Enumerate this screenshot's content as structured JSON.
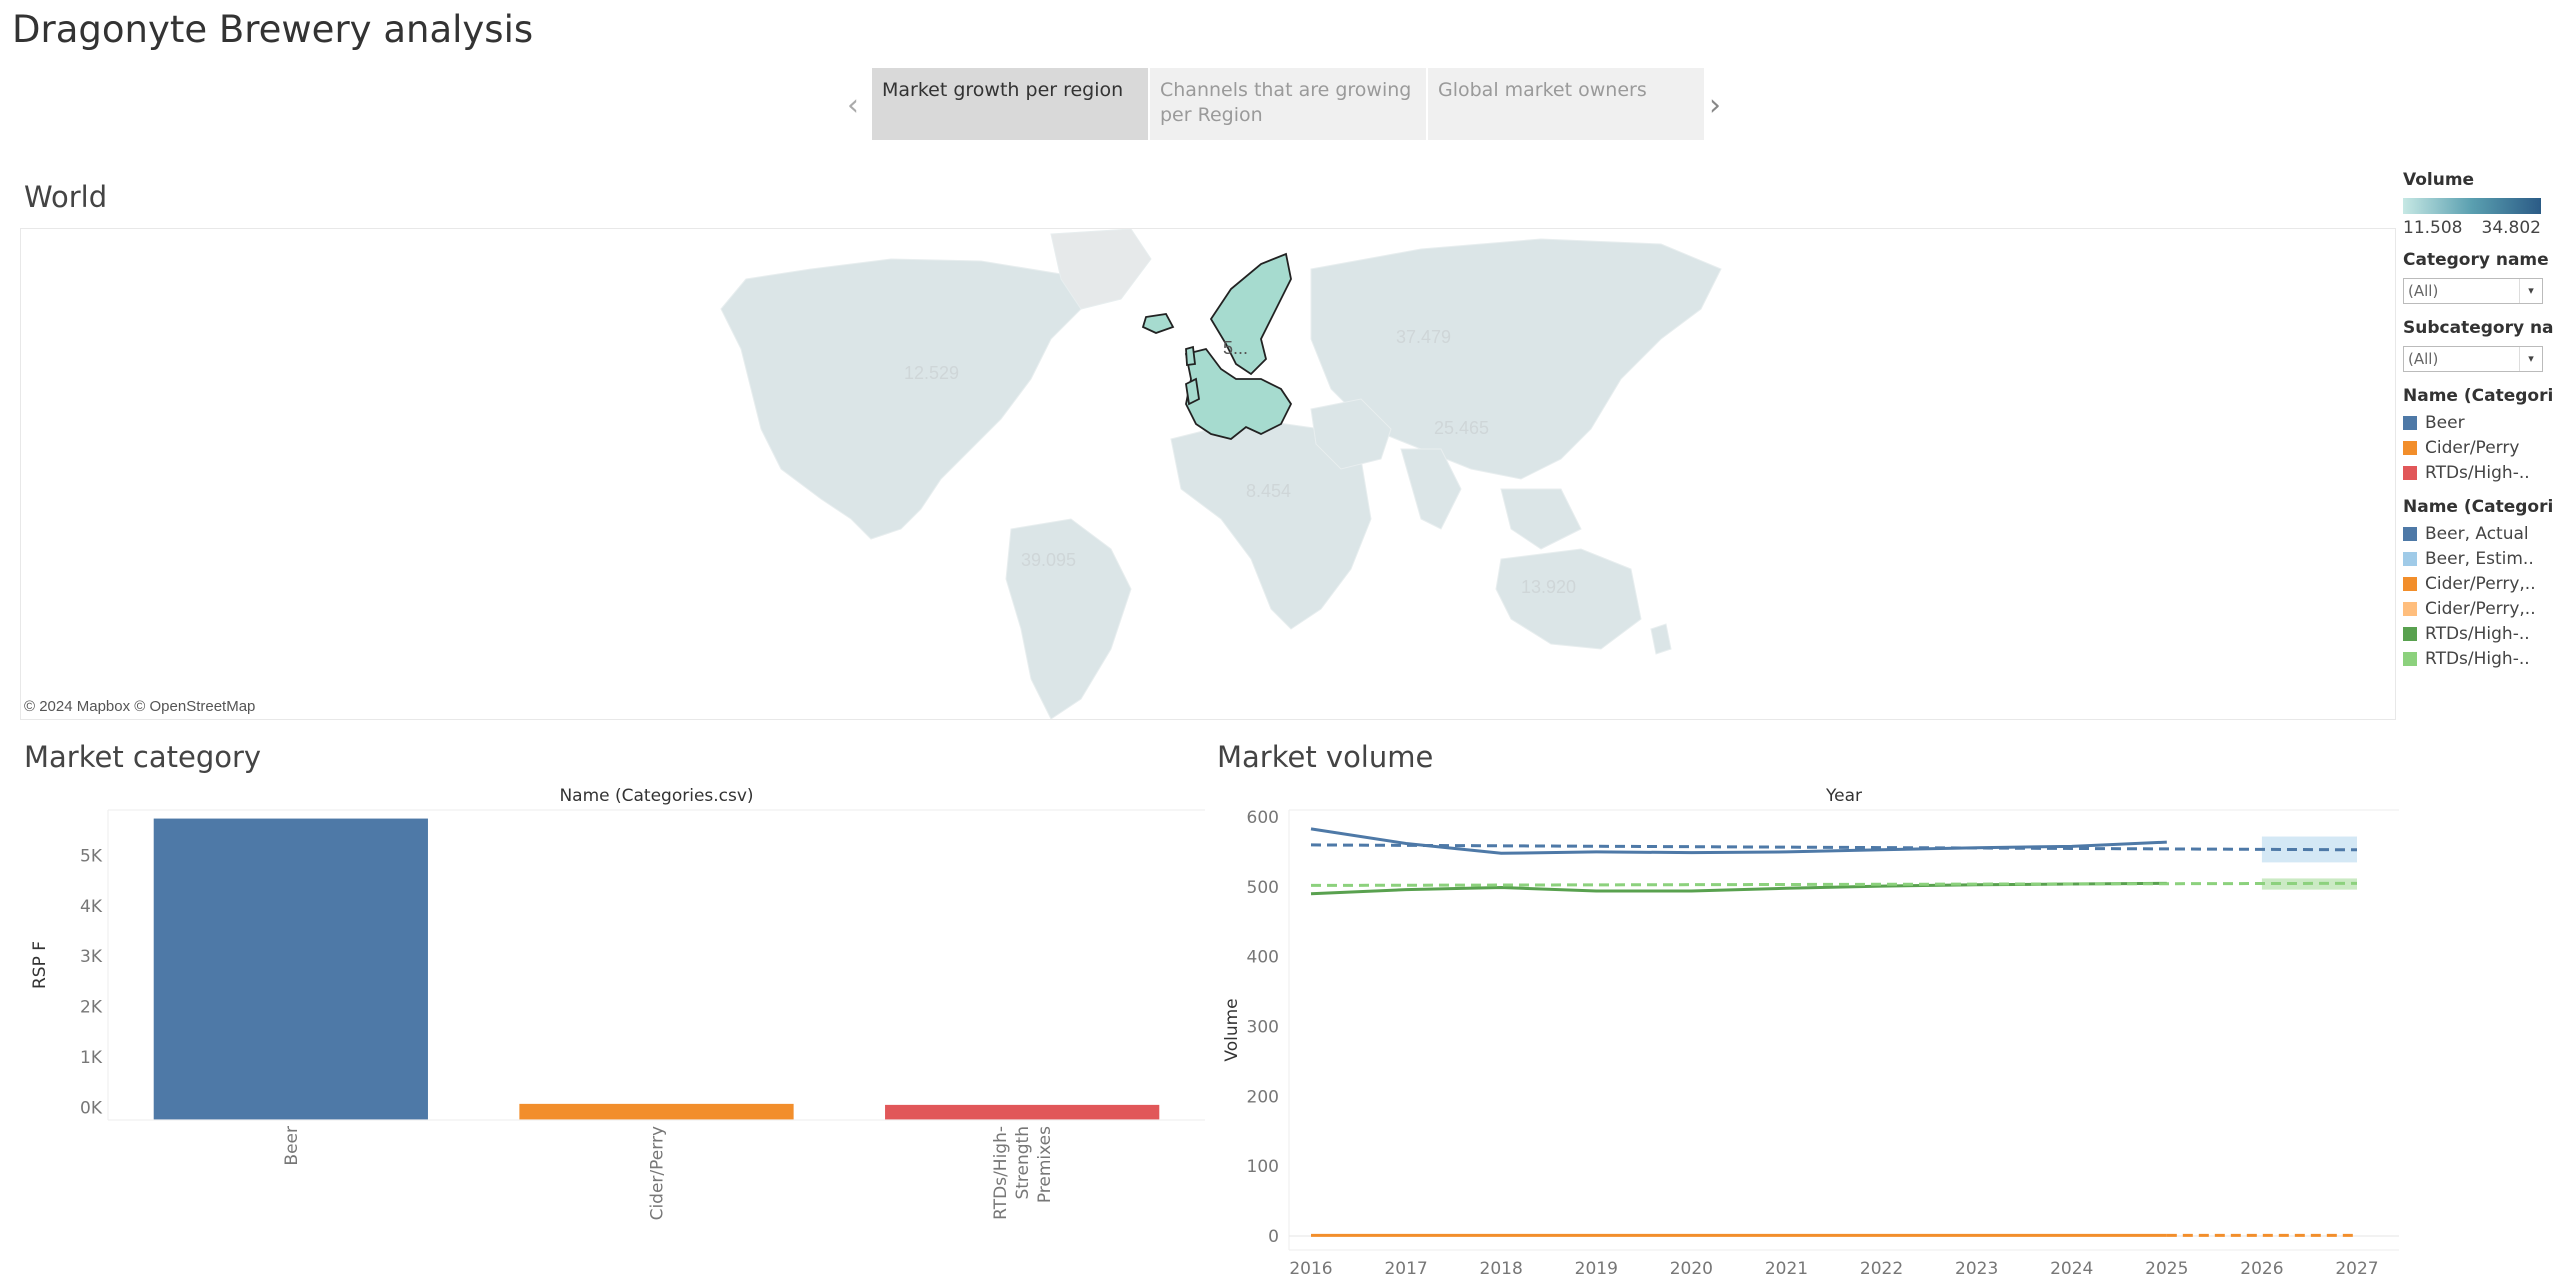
{
  "app": {
    "title": "Dragonyte Brewery analysis"
  },
  "story": {
    "tabs": [
      {
        "label": "Market growth per region",
        "active": true
      },
      {
        "label": "Channels that are growing per Region",
        "active": false
      },
      {
        "label": "Global market owners",
        "active": false
      }
    ],
    "prev_icon": "chevron-left-icon",
    "next_icon": "chevron-right-icon"
  },
  "map": {
    "title": "World",
    "attribution": "© 2024 Mapbox © OpenStreetMap",
    "region_labels": [
      "12.529",
      "5...",
      "37.479",
      "25.465",
      "8.454",
      "39.095",
      "13.920"
    ],
    "highlight_color": "#a6dbcf",
    "base_color": "#d8e4e6"
  },
  "panel": {
    "volume_title": "Volume",
    "volume_min": "11.508",
    "volume_max": "34.802",
    "category_filter_title": "Category name",
    "category_filter_value": "(All)",
    "subcategory_filter_title": "Subcategory na..",
    "subcategory_filter_value": "(All)",
    "legend1_title": "Name (Categori..",
    "legend1_items": [
      {
        "label": "Beer",
        "color": "#4e79a7"
      },
      {
        "label": "Cider/Perry",
        "color": "#f28e2b"
      },
      {
        "label": "RTDs/High-..",
        "color": "#e15759"
      }
    ],
    "legend2_title": "Name (Categori..",
    "legend2_items": [
      {
        "label": "Beer, Actual",
        "color": "#4e79a7"
      },
      {
        "label": "Beer, Estim..",
        "color": "#a0cbe8"
      },
      {
        "label": "Cider/Perry,..",
        "color": "#f28e2b"
      },
      {
        "label": "Cider/Perry,..",
        "color": "#ffbe7d"
      },
      {
        "label": "RTDs/High-..",
        "color": "#59a14f"
      },
      {
        "label": "RTDs/High-..",
        "color": "#8cd17d"
      }
    ]
  },
  "bar_section": {
    "title": "Market category"
  },
  "line_section": {
    "title": "Market volume"
  },
  "chart_data": [
    {
      "type": "bar",
      "title": "Market category",
      "xlabel": "Name (Categories.csv)",
      "ylabel": "RSP F",
      "categories": [
        "Beer",
        "Cider/Perry",
        "RTDs/High-Strength Premixes"
      ],
      "category_lines": [
        [
          "Beer"
        ],
        [
          "Cider/Perry"
        ],
        [
          "RTDs/High-",
          "Strength",
          "Premixes"
        ]
      ],
      "values": [
        5730,
        70,
        50
      ],
      "colors": [
        "#4e79a7",
        "#f28e2b",
        "#e15759"
      ],
      "yticks": [
        "0K",
        "1K",
        "2K",
        "3K",
        "4K",
        "5K"
      ],
      "ytick_values": [
        0,
        1000,
        2000,
        3000,
        4000,
        5000
      ],
      "ylim": [
        -250,
        5900
      ]
    },
    {
      "type": "line",
      "title": "Market volume",
      "xlabel": "Year",
      "ylabel": "Volume",
      "x": [
        2016,
        2017,
        2018,
        2019,
        2020,
        2021,
        2022,
        2023,
        2024,
        2025,
        2026,
        2027
      ],
      "ylim": [
        -20,
        610
      ],
      "yticks": [
        0,
        100,
        200,
        300,
        400,
        500,
        600
      ],
      "series": [
        {
          "name": "Beer, Actual",
          "color": "#4e79a7",
          "dash": false,
          "x": [
            2016,
            2017,
            2018,
            2019,
            2020,
            2021,
            2022,
            2023,
            2024,
            2025
          ],
          "y": [
            583,
            562,
            548,
            550,
            549,
            550,
            553,
            556,
            558,
            564
          ]
        },
        {
          "name": "Beer, Estim..",
          "color": "#4e79a7",
          "dash": true,
          "x": [
            2016,
            2027
          ],
          "y": [
            560,
            553
          ]
        },
        {
          "name": "RTDs/High-..",
          "color": "#59a14f",
          "dash": false,
          "x": [
            2016,
            2017,
            2018,
            2019,
            2020,
            2021,
            2022,
            2023,
            2024,
            2025
          ],
          "y": [
            490,
            496,
            499,
            494,
            494,
            498,
            501,
            503,
            504,
            505
          ]
        },
        {
          "name": "RTDs/High-..",
          "color": "#8cd17d",
          "dash": true,
          "x": [
            2016,
            2027
          ],
          "y": [
            502,
            505
          ]
        },
        {
          "name": "Cider/Perry,..",
          "color": "#f28e2b",
          "dash": false,
          "x": [
            2016,
            2025
          ],
          "y": [
            1,
            1
          ]
        },
        {
          "name": "Cider/Perry,..",
          "color": "#f28e2b",
          "dash": true,
          "x": [
            2025,
            2027
          ],
          "y": [
            1,
            1
          ]
        }
      ],
      "forecast_bands": [
        {
          "color": "#a0cbe8",
          "x": [
            2026,
            2027
          ],
          "y": [
            535,
            572
          ]
        },
        {
          "color": "#8cd17d",
          "x": [
            2026,
            2027
          ],
          "y": [
            496,
            512
          ]
        }
      ]
    }
  ]
}
